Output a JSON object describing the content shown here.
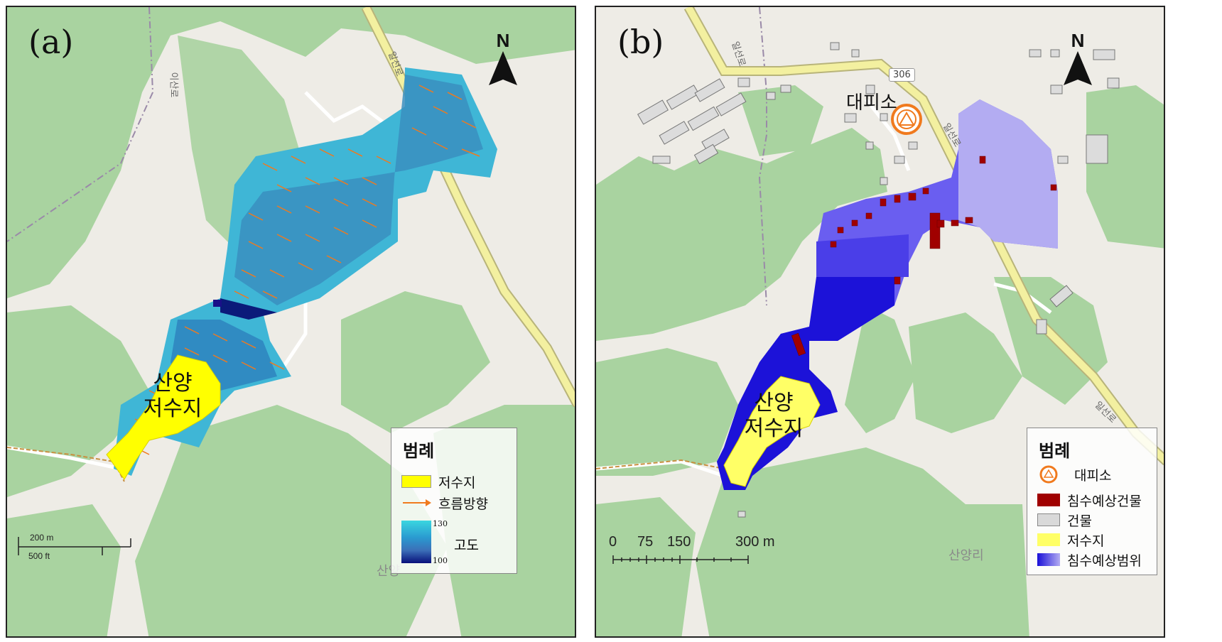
{
  "panels": {
    "a": {
      "label": "(a)",
      "north": "N",
      "reservoir_label_line1": "산양",
      "reservoir_label_line2": "저수지",
      "road_label": "일선로",
      "village_road_label": "이산로",
      "place_label": "산양",
      "legend": {
        "title": "범례",
        "items": [
          {
            "label": "저수지",
            "color": "#ffff00"
          },
          {
            "label": "흐름방향",
            "color": "#f07a1e"
          }
        ],
        "elevation": {
          "label": "고도",
          "max": "130",
          "min": "100",
          "colors": [
            "#3ad6e0",
            "#2a9ad0",
            "#3b6fb8",
            "#08107a"
          ]
        }
      },
      "scale": {
        "metric": "200 m",
        "imperial": "500 ft"
      }
    },
    "b": {
      "label": "(b)",
      "north": "N",
      "reservoir_label_line1": "산양",
      "reservoir_label_line2": "저수지",
      "shelter_label": "대피소",
      "road_shield": "306",
      "road_label": "일선로",
      "road_label_2": "일선로",
      "road_label_3": "일선로",
      "place_label": "산양리",
      "legend": {
        "title": "범례",
        "items": [
          {
            "label": "대피소",
            "icon": "shelter-icon",
            "color": "#f07a1e"
          },
          {
            "label": "침수예상건물",
            "color": "#a00000"
          },
          {
            "label": "건물",
            "color": "#d9d9d9"
          },
          {
            "label": "저수지",
            "color": "#ffff66"
          },
          {
            "label": "침수예상범위",
            "color": "#3b2be0"
          }
        ]
      },
      "scale": {
        "ticks": [
          "0",
          "75",
          "150",
          "300 m"
        ]
      }
    }
  },
  "colors": {
    "background": "#eeece6",
    "forest": "#a9d3a0",
    "road_main": "#f3f0a0",
    "road_minor": "#ffffff",
    "flood_light": "#a9a0f2",
    "flood_dark": "#1a10d8",
    "reservoir": "#ffff00",
    "flow_arrow": "#f07a1e"
  }
}
